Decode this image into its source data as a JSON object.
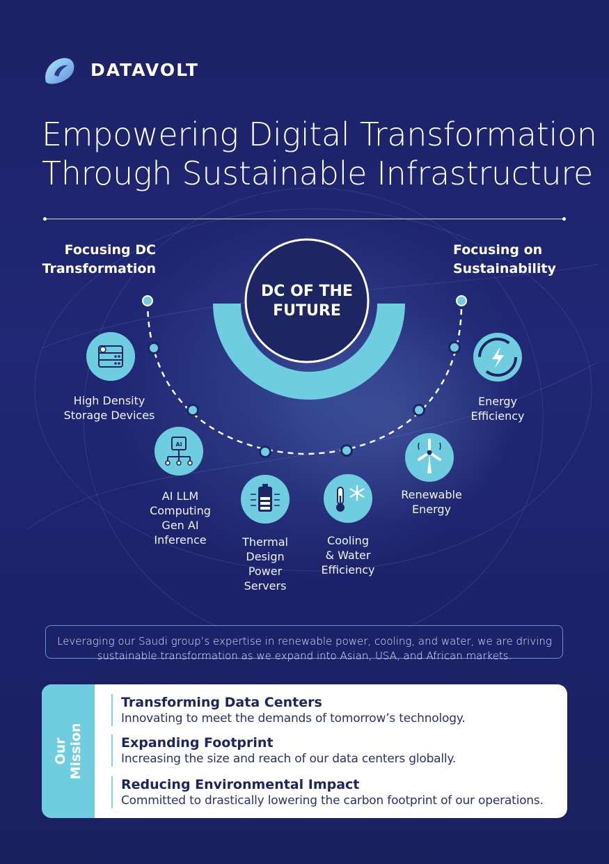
{
  "brand": {
    "name": "DATAVOLT"
  },
  "title": {
    "line1": "Empowering Digital Transformation",
    "line2": "Through Sustainable Infrastructure"
  },
  "sections": {
    "left_heading": {
      "line1": "Focusing DC",
      "line2": "Transformation"
    },
    "right_heading": {
      "line1": "Focusing on",
      "line2": "Sustainability"
    }
  },
  "center": {
    "line1": "DC OF THE",
    "line2": "FUTURE"
  },
  "items": [
    {
      "lines": [
        "High Density",
        "Storage Devices"
      ],
      "icon": "storage-rack-icon"
    },
    {
      "lines": [
        "AI LLM",
        "Computing",
        "Gen AI",
        "Inference"
      ],
      "icon": "ai-chip-icon"
    },
    {
      "lines": [
        "Thermal",
        "Design",
        "Power",
        "Servers"
      ],
      "icon": "battery-icon"
    },
    {
      "lines": [
        "Cooling",
        "& Water",
        "Efficiency"
      ],
      "icon": "thermometer-snowflake-icon"
    },
    {
      "lines": [
        "Renewable",
        "Energy"
      ],
      "icon": "wind-turbine-icon"
    },
    {
      "lines": [
        "Energy",
        "Efficiency"
      ],
      "icon": "energy-cycle-icon"
    }
  ],
  "statement": {
    "line1": "Leveraging our Saudi group’s expertise in renewable power, cooling, and water, we are driving",
    "line2": "sustainable transformation as we expand into Asian, USA, and African markets."
  },
  "mission": {
    "tag": {
      "line1": "Our",
      "line2": "Mission"
    },
    "items": [
      {
        "title": "Transforming Data Centers",
        "desc": "Innovating to meet the demands of tomorrow’s technology."
      },
      {
        "title": "Expanding Footprint",
        "desc": "Increasing the size and reach of our data centers globally."
      },
      {
        "title": "Reducing Environmental Impact",
        "desc": "Committed to drastically lowering the carbon footprint of our operations."
      }
    ]
  },
  "colors": {
    "background": "#1f2570",
    "accent": "#6fcde0",
    "navy": "#1e2563"
  }
}
